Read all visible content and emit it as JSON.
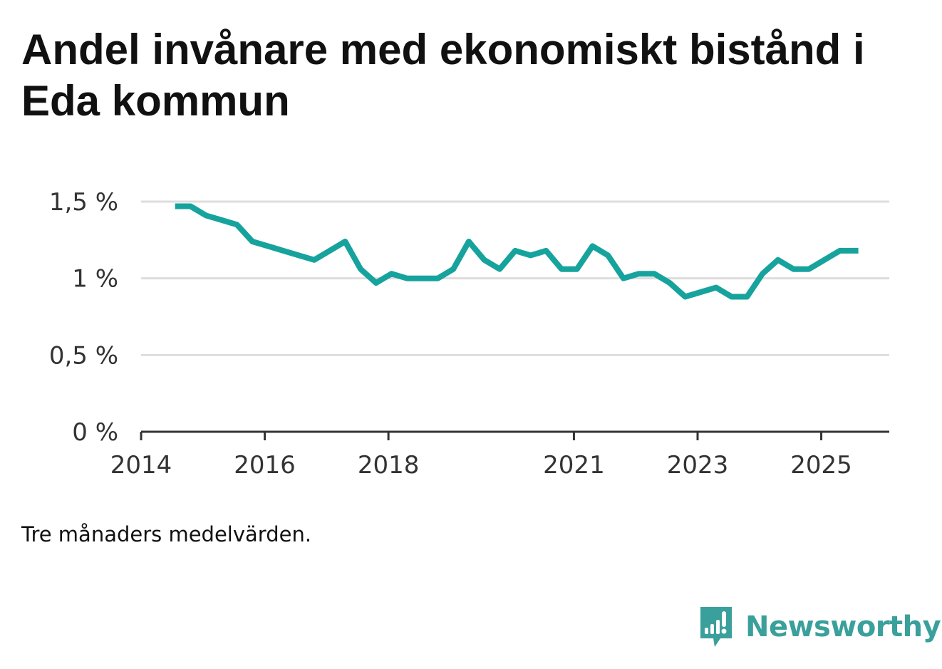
{
  "title": "Andel invånare med ekonomiskt bistånd i Eda kommun",
  "footnote": "Tre månaders medelvärden.",
  "brand": {
    "name": "Newsworthy",
    "icon": "newsworthy-logo-icon",
    "color": "#3aa09b"
  },
  "colors": {
    "line": "#17a39d",
    "grid": "#dddddd",
    "axis": "#333333"
  },
  "chart_data": {
    "type": "line",
    "title": "Andel invånare med ekonomiskt bistånd i Eda kommun",
    "xlabel": "",
    "ylabel": "",
    "grid": true,
    "legend": "none",
    "xlim": [
      2014.0,
      2026.1
    ],
    "ylim": [
      0,
      1.5
    ],
    "y_ticks": [
      {
        "value": 1.5,
        "label": "1,5 %"
      },
      {
        "value": 1.0,
        "label": "1 %"
      },
      {
        "value": 0.5,
        "label": "0,5 %"
      },
      {
        "value": 0.0,
        "label": "0 %"
      }
    ],
    "x_ticks": [
      {
        "value": 2014,
        "label": "2014"
      },
      {
        "value": 2016,
        "label": "2016"
      },
      {
        "value": 2018,
        "label": "2018"
      },
      {
        "value": 2021,
        "label": "2021"
      },
      {
        "value": 2023,
        "label": "2023"
      },
      {
        "value": 2025,
        "label": "2025"
      }
    ],
    "series": [
      {
        "name": "Andel invånare med ekonomiskt bistånd",
        "x": [
          2014.55,
          2014.8,
          2015.05,
          2015.3,
          2015.55,
          2015.8,
          2016.05,
          2016.3,
          2016.55,
          2016.8,
          2017.05,
          2017.3,
          2017.55,
          2017.8,
          2018.05,
          2018.3,
          2018.55,
          2018.8,
          2019.05,
          2019.3,
          2019.55,
          2019.8,
          2020.05,
          2020.3,
          2020.55,
          2020.8,
          2021.05,
          2021.3,
          2021.55,
          2021.8,
          2022.05,
          2022.3,
          2022.55,
          2022.8,
          2023.05,
          2023.3,
          2023.55,
          2023.8,
          2024.05,
          2024.3,
          2024.55,
          2024.8,
          2025.05,
          2025.3,
          2025.6
        ],
        "values": [
          1.47,
          1.47,
          1.41,
          1.38,
          1.35,
          1.24,
          1.21,
          1.18,
          1.15,
          1.12,
          1.18,
          1.24,
          1.06,
          0.97,
          1.03,
          1.0,
          1.0,
          1.0,
          1.06,
          1.24,
          1.12,
          1.06,
          1.18,
          1.15,
          1.18,
          1.06,
          1.06,
          1.21,
          1.15,
          1.0,
          1.03,
          1.03,
          0.97,
          0.88,
          0.91,
          0.94,
          0.88,
          0.88,
          1.03,
          1.12,
          1.06,
          1.06,
          1.12,
          1.18,
          1.18
        ]
      }
    ]
  }
}
